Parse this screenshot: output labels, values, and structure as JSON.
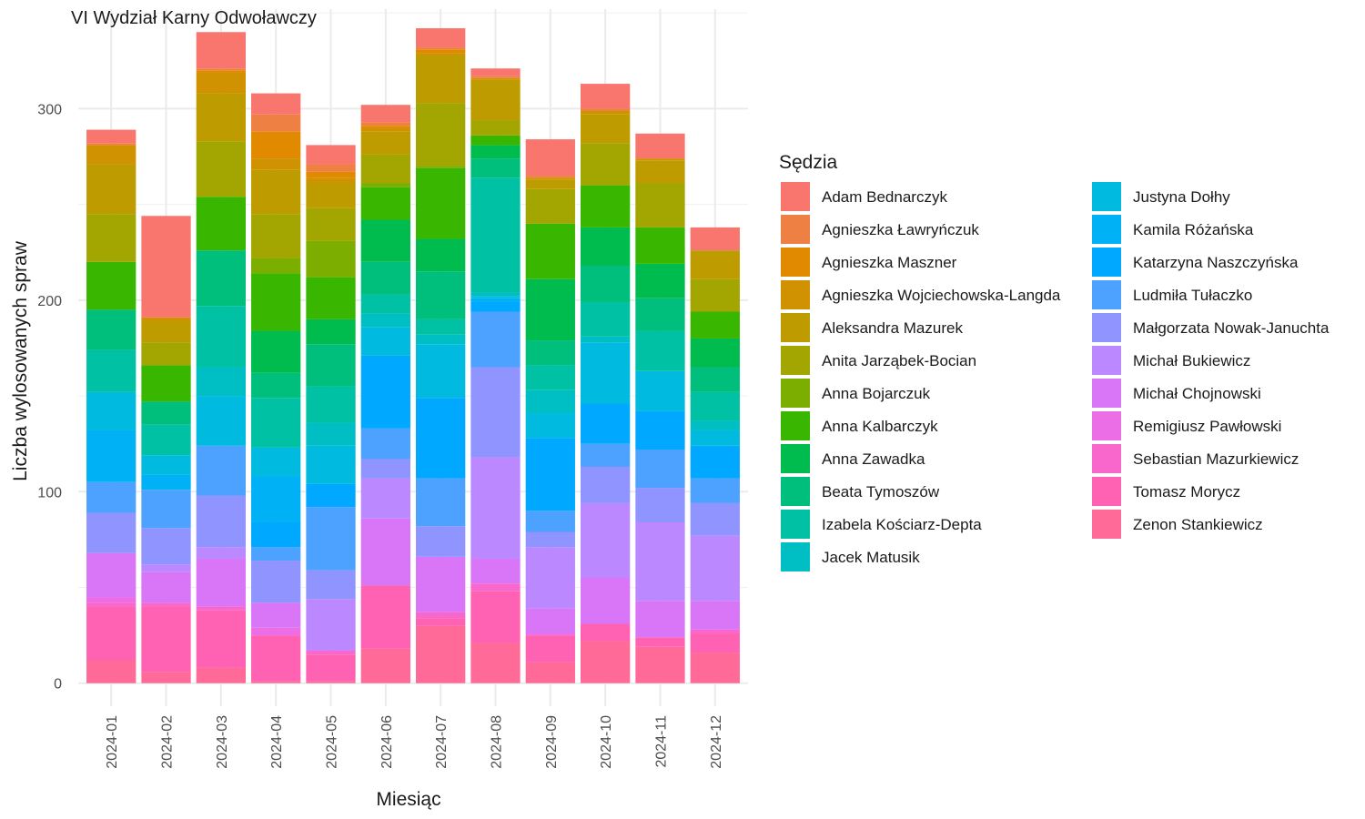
{
  "chart_data": {
    "type": "bar",
    "stacked": true,
    "title": "VI Wydział Karny Odwoławczy",
    "xlabel": "Miesiąc",
    "ylabel": "Liczba wylosowanych spraw",
    "ylim": [
      -12,
      352
    ],
    "yticks": [
      0,
      100,
      200,
      300
    ],
    "grid": true,
    "legend_title": "Sędzia",
    "legend_position": "right",
    "categories": [
      "2024-01",
      "2024-02",
      "2024-03",
      "2024-04",
      "2024-05",
      "2024-06",
      "2024-07",
      "2024-08",
      "2024-09",
      "2024-10",
      "2024-11",
      "2024-12"
    ],
    "series": [
      {
        "name": "Adam Bednarczyk",
        "color": "#F8766D",
        "values": [
          7,
          53,
          19,
          11,
          10,
          9,
          10,
          4,
          19,
          13,
          13,
          12
        ]
      },
      {
        "name": "Agnieszka Ławryńczuk",
        "color": "#EE8043",
        "values": [
          1,
          0,
          1,
          9,
          4,
          2,
          1,
          1,
          1,
          1,
          0,
          0
        ]
      },
      {
        "name": "Agnieszka Maszner",
        "color": "#E18A00",
        "values": [
          0,
          0,
          1,
          14,
          3,
          1,
          2,
          0,
          0,
          0,
          0,
          0
        ]
      },
      {
        "name": "Agnieszka Wojciechowska-Langda",
        "color": "#D09200",
        "values": [
          10,
          2,
          11,
          6,
          3,
          2,
          1,
          1,
          1,
          2,
          1,
          0
        ]
      },
      {
        "name": "Aleksandra Mazurek",
        "color": "#BE9C00",
        "values": [
          26,
          11,
          25,
          23,
          13,
          12,
          25,
          21,
          5,
          15,
          12,
          15
        ]
      },
      {
        "name": "Anita Jarząbek-Bocian",
        "color": "#A3A500",
        "values": [
          25,
          12,
          29,
          23,
          17,
          15,
          33,
          8,
          18,
          22,
          23,
          17
        ]
      },
      {
        "name": "Anna Bojarczuk",
        "color": "#7CAE00",
        "values": [
          0,
          0,
          0,
          8,
          19,
          2,
          1,
          0,
          0,
          0,
          0,
          0
        ]
      },
      {
        "name": "Anna Kalbarczyk",
        "color": "#39B600",
        "values": [
          25,
          19,
          28,
          30,
          22,
          17,
          37,
          5,
          29,
          22,
          19,
          14
        ]
      },
      {
        "name": "Anna Zawadka",
        "color": "#00BB4E",
        "values": [
          0,
          0,
          0,
          22,
          13,
          22,
          17,
          7,
          32,
          20,
          18,
          15
        ]
      },
      {
        "name": "Beata Tymoszów",
        "color": "#00BF7D",
        "values": [
          21,
          12,
          29,
          13,
          22,
          17,
          25,
          10,
          13,
          19,
          17,
          13
        ]
      },
      {
        "name": "Izabela Kościarz-Depta",
        "color": "#00C1A3",
        "values": [
          22,
          16,
          32,
          26,
          19,
          10,
          8,
          60,
          13,
          18,
          21,
          15
        ]
      },
      {
        "name": "Jacek Matusik",
        "color": "#00BFC4",
        "values": [
          0,
          0,
          15,
          0,
          12,
          7,
          5,
          2,
          12,
          3,
          0,
          5
        ]
      },
      {
        "name": "Justyna Dołhy",
        "color": "#00BAE0",
        "values": [
          20,
          10,
          26,
          15,
          20,
          15,
          28,
          1,
          13,
          32,
          21,
          8
        ]
      },
      {
        "name": "Kamila Różańska",
        "color": "#00B2F5",
        "values": [
          27,
          8,
          0,
          24,
          0,
          0,
          0,
          2,
          0,
          0,
          0,
          0
        ]
      },
      {
        "name": "Katarzyna Naszczyńska",
        "color": "#00A9FF",
        "values": [
          0,
          0,
          0,
          13,
          12,
          38,
          42,
          5,
          38,
          21,
          20,
          17
        ]
      },
      {
        "name": "Ludmiła Tułaczko",
        "color": "#4DA1FF",
        "values": [
          16,
          20,
          26,
          7,
          33,
          16,
          25,
          29,
          11,
          12,
          20,
          13
        ]
      },
      {
        "name": "Małgorzata Nowak-Januchta",
        "color": "#8F94FF",
        "values": [
          21,
          19,
          27,
          22,
          15,
          10,
          16,
          47,
          8,
          19,
          18,
          17
        ]
      },
      {
        "name": "Michał Bukiewicz",
        "color": "#BB88FF",
        "values": [
          0,
          4,
          6,
          0,
          27,
          21,
          0,
          53,
          32,
          39,
          41,
          34
        ]
      },
      {
        "name": "Michał Chojnowski",
        "color": "#D876F7",
        "values": [
          23,
          16,
          25,
          13,
          0,
          35,
          29,
          13,
          13,
          24,
          19,
          15
        ]
      },
      {
        "name": "Remigiusz Pawłowski",
        "color": "#EB6EE6",
        "values": [
          3,
          0,
          0,
          4,
          0,
          0,
          0,
          0,
          1,
          0,
          0,
          0
        ]
      },
      {
        "name": "Sebastian Mazurkiewicz",
        "color": "#F966CC",
        "values": [
          2,
          2,
          2,
          0,
          2,
          0,
          3,
          4,
          0,
          0,
          0,
          2
        ]
      },
      {
        "name": "Tomasz Morycz",
        "color": "#FF62B2",
        "values": [
          28,
          34,
          30,
          24,
          14,
          33,
          4,
          27,
          14,
          9,
          5,
          10
        ]
      },
      {
        "name": "Zenon Stankiewicz",
        "color": "#FF6A98",
        "values": [
          12,
          6,
          8,
          1,
          1,
          18,
          30,
          21,
          11,
          22,
          19,
          16
        ]
      }
    ]
  }
}
